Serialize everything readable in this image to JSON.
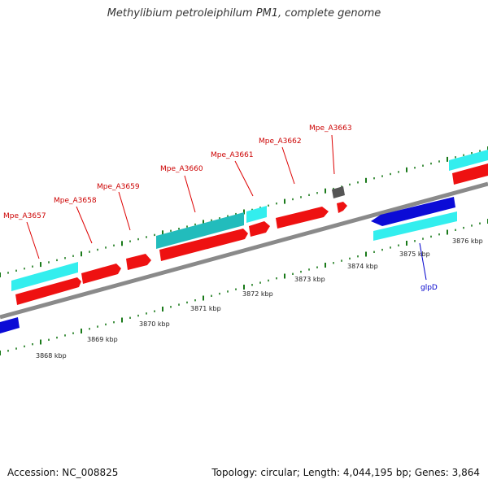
{
  "title": "Methylibium petroleiphilum PM1, complete genome",
  "footer": {
    "accession": "Accession: NC_008825",
    "info": "Topology: circular; Length: 4,044,195 bp; Genes: 3,864"
  },
  "genes": [
    {
      "label": "Mpe_A3657"
    },
    {
      "label": "Mpe_A3658"
    },
    {
      "label": "Mpe_A3659"
    },
    {
      "label": "Mpe_A3660"
    },
    {
      "label": "Mpe_A3661"
    },
    {
      "label": "Mpe_A3662"
    },
    {
      "label": "Mpe_A3663"
    },
    {
      "label": "glpD"
    }
  ],
  "scale": {
    "labels": [
      "3868 kbp",
      "3869 kbp",
      "3870 kbp",
      "3871 kbp",
      "3872 kbp",
      "3873 kbp",
      "3874 kbp",
      "3875 kbp",
      "3876 kbp"
    ]
  },
  "colors": {
    "cds_forward": "#ee1111",
    "cds_reverse": "#0b0bd6",
    "gene_forward": "#33eeee",
    "gene_alt": "#22bcbc",
    "misc": "#555555",
    "backbone": "#8a8a8a",
    "ticks": "#1a7a1a",
    "label_red": "#cc0000",
    "label_blue": "#0000cc"
  }
}
